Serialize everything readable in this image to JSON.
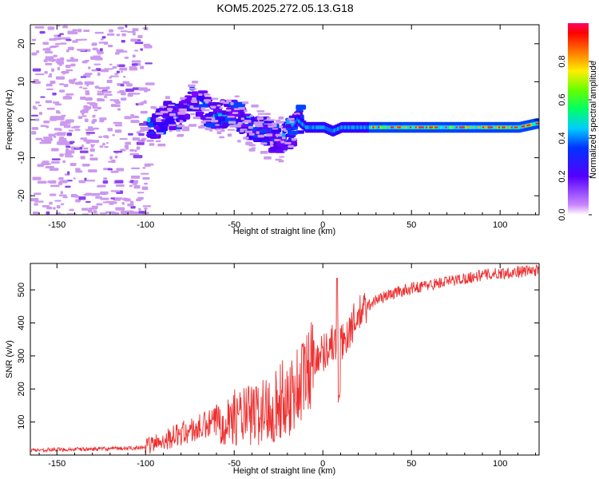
{
  "title": "KOM5.2025.272.05.13.G18",
  "chart_data": [
    {
      "type": "heatmap",
      "name": "spectrogram",
      "xlabel": "Height of straight line (km)",
      "ylabel": "Frequency (Hz)",
      "xlim": [
        -165,
        122
      ],
      "ylim": [
        -25,
        25
      ],
      "xticks": [
        -150,
        -100,
        -50,
        0,
        50,
        100
      ],
      "yticks": [
        -20,
        -10,
        0,
        10,
        20
      ],
      "ridge": {
        "x": [
          -100,
          -95,
          -90,
          -85,
          -80,
          -75,
          -70,
          -65,
          -60,
          -55,
          -50,
          -45,
          -40,
          -35,
          -30,
          -25,
          -20,
          -15,
          -10,
          -5,
          0,
          5,
          10,
          20,
          30,
          40,
          50,
          60,
          70,
          80,
          90,
          100,
          110,
          120
        ],
        "freq": [
          -2,
          -1,
          1,
          0,
          2,
          5,
          4,
          1,
          1,
          2,
          1,
          -1,
          -2,
          -3,
          -5,
          -5,
          -3,
          0,
          -2,
          -2,
          -2,
          -3,
          -2,
          -2,
          -2,
          -2,
          -2,
          -2,
          -2,
          -2,
          -2,
          -2,
          -2,
          -1
        ]
      },
      "colorbar": {
        "label": "Normalized spectral amplitude",
        "range": [
          0,
          1
        ],
        "ticks": [
          "0.0",
          "0.2",
          "0.4",
          "0.6",
          "0.8"
        ]
      }
    },
    {
      "type": "line",
      "name": "snr",
      "xlabel": "Height of straight line (km)",
      "ylabel": "SNR (v/v)",
      "xlim": [
        -165,
        122
      ],
      "ylim": [
        0,
        580
      ],
      "xticks": [
        -150,
        -100,
        -50,
        0,
        50,
        100
      ],
      "yticks": [
        100,
        200,
        300,
        400,
        500
      ],
      "color": "#ee3030",
      "trend": {
        "x": [
          -165,
          -110,
          -100,
          -90,
          -80,
          -70,
          -60,
          -50,
          -40,
          -30,
          -20,
          -15,
          -10,
          -5,
          0,
          5,
          10,
          15,
          20,
          25,
          30,
          40,
          50,
          60,
          70,
          80,
          90,
          100,
          110,
          122
        ],
        "snr": [
          15,
          20,
          25,
          45,
          65,
          80,
          100,
          115,
          120,
          140,
          175,
          200,
          240,
          300,
          310,
          340,
          330,
          380,
          420,
          450,
          470,
          490,
          505,
          515,
          525,
          535,
          545,
          550,
          555,
          560
        ]
      }
    }
  ],
  "colors": {
    "axis": "#000000",
    "line": "#ee3030",
    "speckle": "#cc99ee"
  }
}
